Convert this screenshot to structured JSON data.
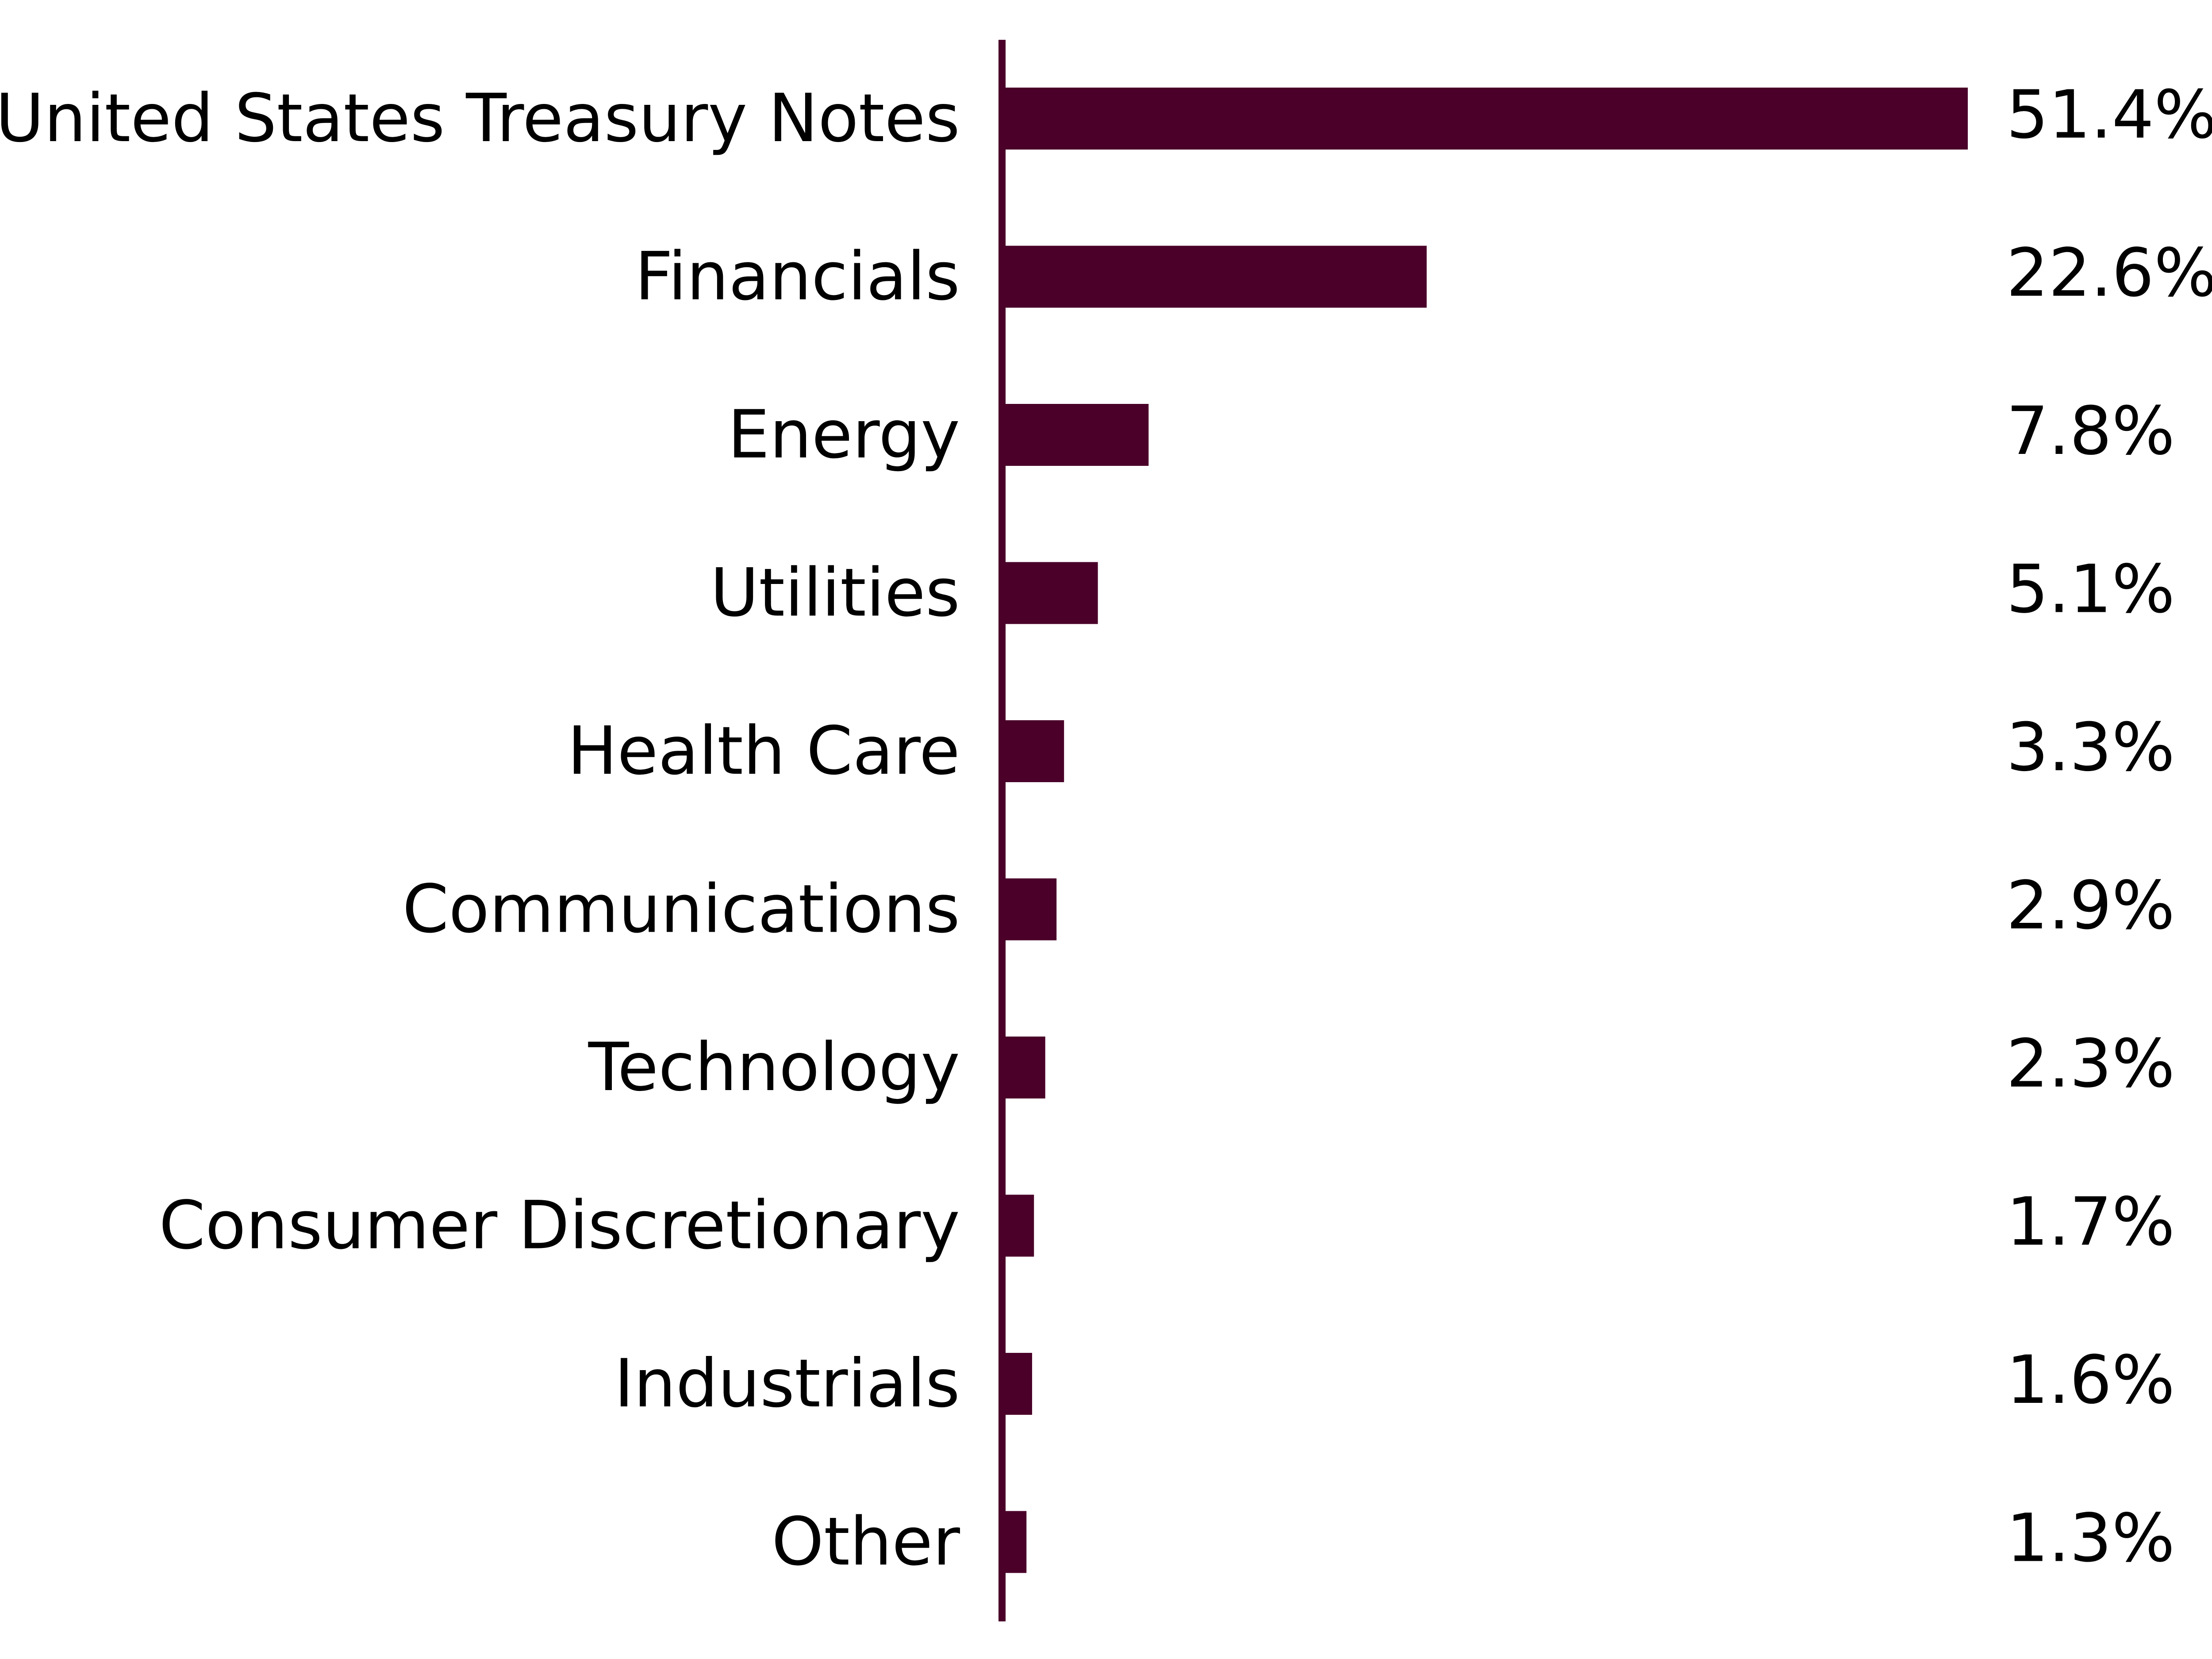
{
  "colors": {
    "bar": "#4a0029",
    "axis": "#4a0029",
    "text": "#000000",
    "background": "#ffffff"
  },
  "chart_data": {
    "type": "bar",
    "orientation": "horizontal",
    "categories": [
      "United States Treasury Notes",
      "Financials",
      "Energy",
      "Utilities",
      "Health Care",
      "Communications",
      "Technology",
      "Consumer Discretionary",
      "Industrials",
      "Other"
    ],
    "values": [
      51.4,
      22.6,
      7.8,
      5.1,
      3.3,
      2.9,
      2.3,
      1.7,
      1.6,
      1.3
    ],
    "value_labels": [
      "51.4%",
      "22.6%",
      "7.8%",
      "5.1%",
      "3.3%",
      "2.9%",
      "2.3%",
      "1.7%",
      "1.6%",
      "1.3%"
    ],
    "unit": "%",
    "title": "",
    "xlabel": "",
    "ylabel": "",
    "xlim": [
      0,
      51.4
    ],
    "grid": false,
    "legend": "none"
  }
}
